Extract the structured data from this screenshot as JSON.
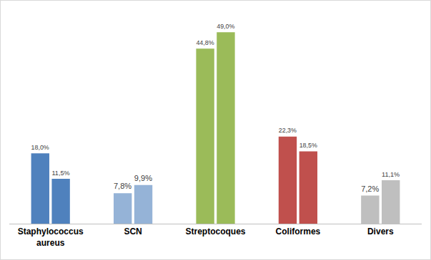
{
  "chart_data": {
    "type": "bar",
    "categories": [
      "Staphylococcus aureus",
      "SCN",
      "Streptocoques",
      "Coliformes",
      "Divers"
    ],
    "series": [
      {
        "values": [
          18.0,
          7.8,
          44.8,
          22.3,
          7.2
        ],
        "value_labels": [
          "18,0%",
          "7,8%",
          "44,8%",
          "22,3%",
          "7,2%"
        ],
        "colors": [
          "#4f81bd",
          "#95b3d7",
          "#9bbb59",
          "#c0504d",
          "#bfbfbf"
        ]
      },
      {
        "values": [
          11.5,
          9.9,
          49.0,
          18.5,
          11.1
        ],
        "value_labels": [
          "11,5%",
          "9,9%",
          "49,0%",
          "18,5%",
          "11,1%"
        ],
        "colors": [
          "#4f81bd",
          "#95b3d7",
          "#9bbb59",
          "#c0504d",
          "#bfbfbf"
        ]
      }
    ],
    "data_labels": true,
    "grid": false,
    "tick_labels": "x"
  }
}
